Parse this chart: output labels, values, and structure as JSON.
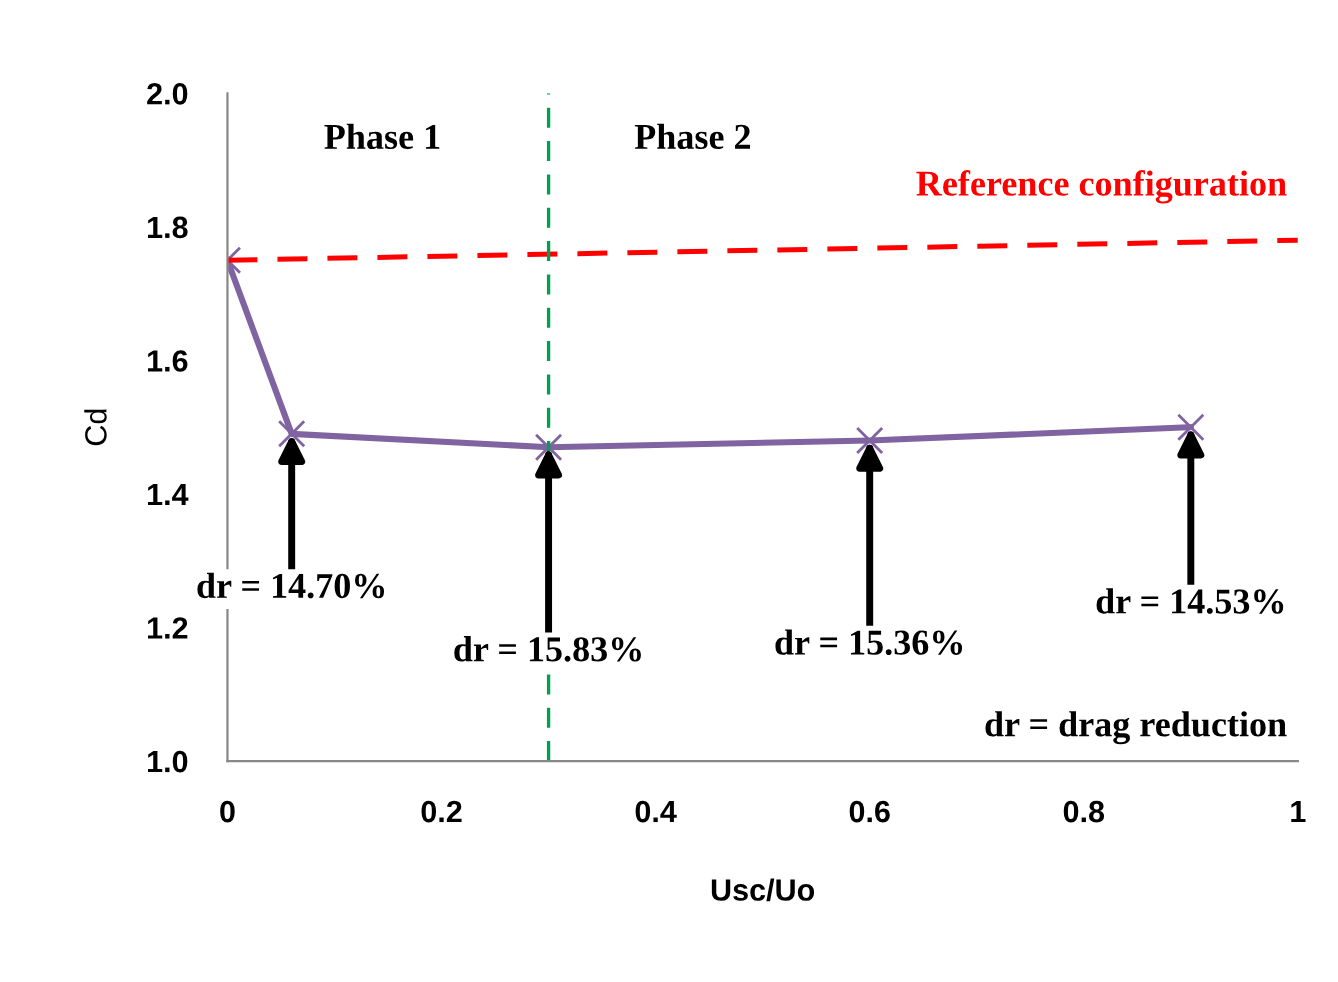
{
  "chart_data": {
    "type": "line",
    "xlabel": "Usc/Uo",
    "ylabel": "Cd",
    "xlim": [
      0,
      1
    ],
    "xticks": [
      0,
      0.2,
      0.4,
      0.6,
      0.8,
      1
    ],
    "ylim": [
      1.0,
      2.0
    ],
    "yticks": [
      {
        "value": 1.0,
        "label": "1.0"
      },
      1.2,
      1.4,
      1.6,
      1.8,
      {
        "value": 2.0,
        "label": "2.0"
      }
    ],
    "series": [
      {
        "color": "#8064a2",
        "x": [
          0,
          0.06,
          0.3,
          0.6,
          0.9
        ],
        "values": [
          1.75,
          1.49,
          1.47,
          1.48,
          1.5
        ],
        "marker": "cross"
      },
      {
        "color": "#ff0000",
        "x": [
          0,
          1
        ],
        "values": [
          1.75,
          1.78
        ],
        "line_style": "dashed",
        "marker": "none"
      }
    ],
    "ref_lines": [
      {
        "axis": "x",
        "value": 0.3,
        "color": "#00a050",
        "line_style": "dashed"
      }
    ],
    "annotations": [
      {
        "text": "dr = 14.70%",
        "x": 0.06,
        "y": 1.49
      },
      {
        "text": "dr = 15.83%",
        "x": 0.3,
        "y": 1.47
      },
      {
        "text": "dr = 15.36%",
        "x": 0.6,
        "y": 1.48
      },
      {
        "text": "dr = 14.53%",
        "x": 0.9,
        "y": 1.5
      },
      "Phase 1",
      "Phase 2",
      "Reference configuration",
      "dr = drag reduction"
    ],
    "grid": false
  }
}
